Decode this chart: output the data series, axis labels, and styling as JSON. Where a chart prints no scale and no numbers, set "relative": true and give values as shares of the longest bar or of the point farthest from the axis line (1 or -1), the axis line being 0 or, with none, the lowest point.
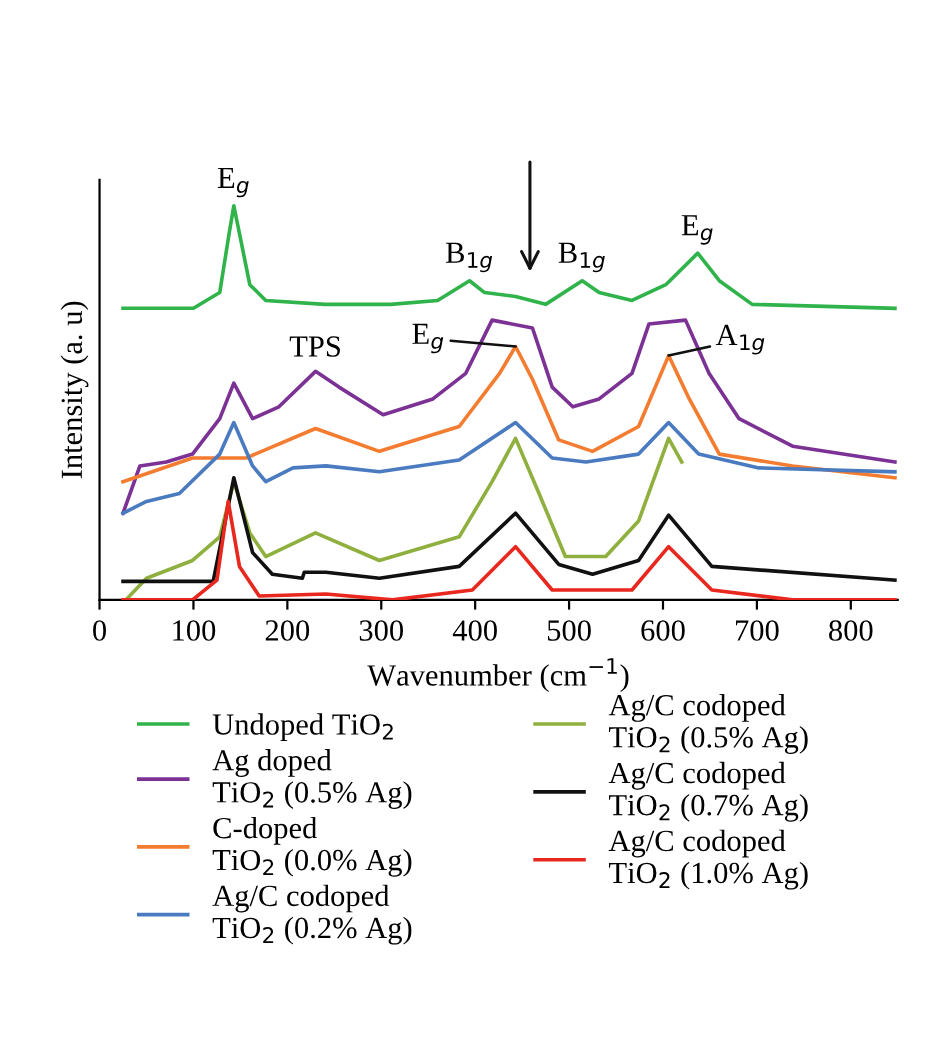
{
  "chart_data": {
    "type": "line",
    "relative": true,
    "xlabel": "Wavenumber (cm$^{−1}$)",
    "ylabel": "Intensity (a. u)",
    "xlim": [
      0,
      850
    ],
    "xticks": [
      0,
      100,
      200,
      300,
      400,
      500,
      600,
      700,
      800
    ],
    "grid": false,
    "legend": "bottom",
    "marker": "none",
    "line_style": "solid",
    "series": [
      {
        "name": "Undoped TiO$_{2}$",
        "color": "#2fb34a",
        "x": [
          25,
          100,
          128,
          138,
          143,
          149,
          160,
          177,
          240,
          310,
          360,
          394,
          410,
          443,
          475,
          514,
          532,
          567,
          603,
          637,
          660,
          695,
          847
        ],
        "values": [
          0.74,
          0.74,
          0.78,
          0.93,
          1.0,
          0.93,
          0.8,
          0.76,
          0.75,
          0.75,
          0.76,
          0.81,
          0.78,
          0.77,
          0.75,
          0.81,
          0.78,
          0.76,
          0.8,
          0.88,
          0.81,
          0.75,
          0.74
        ]
      },
      {
        "name": "Ag doped\nTiO$_{2}$ (0.5% Ag)",
        "color": "#7b3294",
        "x": [
          25,
          43,
          71,
          99,
          128,
          143,
          163,
          191,
          230,
          255,
          302,
          355,
          390,
          418,
          461,
          482,
          504,
          532,
          567,
          585,
          624,
          649,
          681,
          738,
          847
        ],
        "values": [
          0.22,
          0.34,
          0.35,
          0.37,
          0.46,
          0.55,
          0.46,
          0.49,
          0.58,
          0.54,
          0.47,
          0.51,
          0.575,
          0.71,
          0.69,
          0.54,
          0.49,
          0.51,
          0.575,
          0.7,
          0.71,
          0.575,
          0.46,
          0.39,
          0.35
        ]
      },
      {
        "name": "C-doped\nTiO$_{2}$ (0.0% Ag)",
        "color": "#f47c30",
        "x": [
          25,
          99,
          156,
          230,
          298,
          383,
          426,
          443,
          461,
          489,
          525,
          574,
          606,
          628,
          660,
          738,
          847
        ],
        "values": [
          0.3,
          0.36,
          0.36,
          0.435,
          0.377,
          0.44,
          0.575,
          0.643,
          0.56,
          0.406,
          0.377,
          0.44,
          0.62,
          0.51,
          0.37,
          0.34,
          0.31
        ]
      },
      {
        "name": "Ag/C codoped\nTiO$_{2}$ (0.2% Ag)",
        "color": "#4a7bc0",
        "x": [
          25,
          50,
          85,
          128,
          143,
          163,
          177,
          206,
          241,
          298,
          383,
          443,
          482,
          518,
          574,
          606,
          638,
          702,
          847
        ],
        "values": [
          0.22,
          0.25,
          0.27,
          0.37,
          0.45,
          0.34,
          0.3,
          0.335,
          0.34,
          0.325,
          0.355,
          0.45,
          0.36,
          0.35,
          0.37,
          0.45,
          0.37,
          0.335,
          0.325
        ]
      },
      {
        "name": "Ag/C codoped\nTiO$_{2}$ (0.5% Ag)",
        "color": "#8fb03e",
        "x": [
          28,
          50,
          99,
          128,
          143,
          160,
          177,
          230,
          298,
          383,
          418,
          443,
          468,
          496,
          539,
          574,
          606,
          620
        ],
        "values": [
          0.0,
          0.055,
          0.1,
          0.16,
          0.3,
          0.17,
          0.11,
          0.17,
          0.1,
          0.16,
          0.3,
          0.41,
          0.27,
          0.11,
          0.11,
          0.2,
          0.41,
          0.35
        ]
      },
      {
        "name": "Ag/C codoped\nTiO$_{2}$ (0.7% Ag)",
        "color": "#111111",
        "x": [
          25,
          121,
          143,
          163,
          184,
          216,
          218,
          241,
          298,
          383,
          443,
          489,
          525,
          574,
          606,
          652,
          847
        ],
        "values": [
          0.047,
          0.047,
          0.31,
          0.12,
          0.065,
          0.055,
          0.07,
          0.07,
          0.055,
          0.085,
          0.22,
          0.09,
          0.065,
          0.1,
          0.215,
          0.085,
          0.05
        ]
      },
      {
        "name": "Ag/C codoped\nTiO$_{2}$ (1.0% Ag)",
        "color": "#e8281e",
        "x": [
          25,
          99,
          125,
          137,
          149,
          170,
          241,
          312,
          397,
          443,
          482,
          567,
          606,
          652,
          738,
          847
        ],
        "values": [
          0.0,
          0.0,
          0.05,
          0.25,
          0.085,
          0.01,
          0.015,
          0.0,
          0.025,
          0.135,
          0.025,
          0.025,
          0.135,
          0.025,
          0.0,
          0.0
        ]
      }
    ],
    "annotations": [
      {
        "text": "E$_{g}$",
        "x": 143,
        "y": 1.0
      },
      {
        "text": "B$_{1g}$",
        "x": 394,
        "y": 0.81
      },
      {
        "text": "B$_{1g}$",
        "x": 514,
        "y": 0.81
      },
      {
        "text": "E$_{g}$",
        "x": 637,
        "y": 0.88
      },
      {
        "text": "TPS",
        "x": 230,
        "y": 0.58
      },
      {
        "text": "E$_{g}$",
        "x": 443,
        "y": 0.643
      },
      {
        "text": "A$_{1g}$",
        "x": 606,
        "y": 0.62
      }
    ]
  }
}
